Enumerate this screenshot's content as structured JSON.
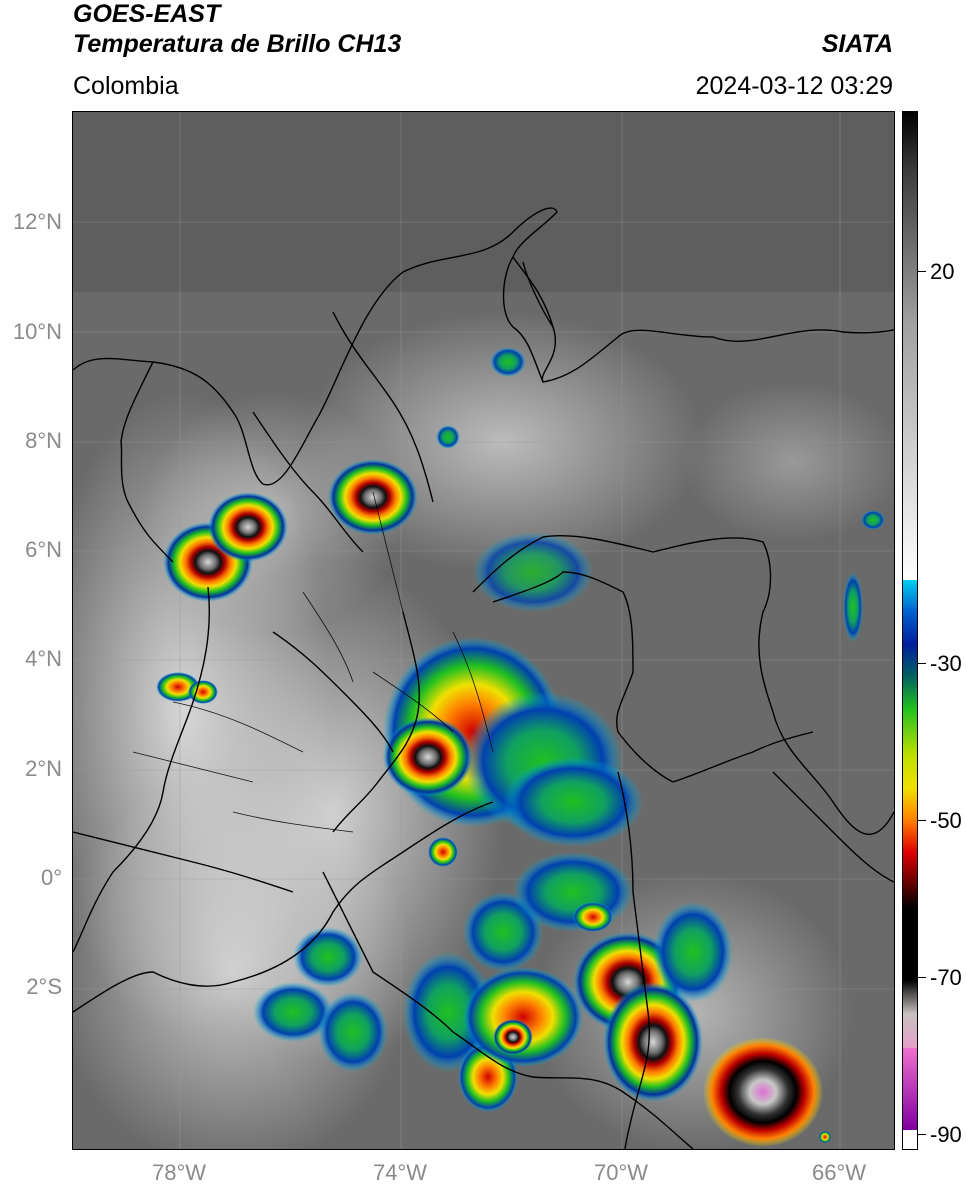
{
  "header": {
    "satellite": "GOES-EAST",
    "product": "Temperatura de Brillo CH13",
    "region": "Colombia",
    "organization": "SIATA",
    "datetime": "2024-03-12 03:29"
  },
  "map": {
    "lat_labels": [
      "12°N",
      "10°N",
      "8°N",
      "6°N",
      "4°N",
      "2°N",
      "0°",
      "2°S"
    ],
    "lon_labels": [
      "78°W",
      "74°W",
      "70°W",
      "66°W"
    ],
    "base_colors": {
      "warm_cloud_free": "#6e6e6e",
      "cold_cloud_top": "#f0f0f0"
    }
  },
  "colorbar": {
    "tick_labels": [
      "20",
      "-30",
      "-50",
      "-70",
      "-90"
    ],
    "colors": {
      "gray_scale": "#1a1a1a",
      "cyan": "#00c0e0",
      "blue": "#0030a0",
      "green": "#20c020",
      "yellow": "#f0e000",
      "orange": "#ff8000",
      "red": "#d00000",
      "black": "#000000",
      "pink": "#e070d0",
      "purple": "#a020a0"
    }
  }
}
